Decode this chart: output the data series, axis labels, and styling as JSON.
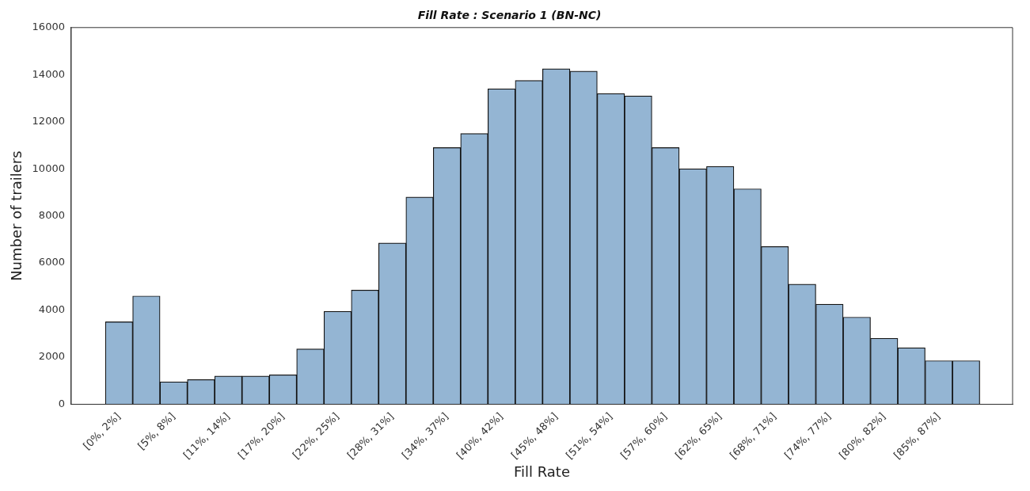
{
  "chart_data": {
    "type": "bar",
    "title": "Fill Rate : Scenario 1 (BN-NC)",
    "xlabel": "Fill Rate",
    "ylabel": "Number of trailers",
    "categories": [
      "[0%, 2%]",
      null,
      "[5%, 8%]",
      null,
      "[11%, 14%]",
      null,
      "[17%, 20%]",
      null,
      "[22%, 25%]",
      null,
      "[28%, 31%]",
      null,
      "[34%, 37%]",
      null,
      "[40%, 42%]",
      null,
      "[45%, 48%]",
      null,
      "[51%, 54%]",
      null,
      "[57%, 60%]",
      null,
      "[62%, 65%]",
      null,
      "[68%, 71%]",
      null,
      "[74%, 77%]",
      null,
      "[80%, 82%]",
      null,
      "[85%, 87%]",
      null
    ],
    "values": [
      3500,
      4600,
      950,
      1050,
      1200,
      1200,
      1250,
      2350,
      3950,
      4850,
      6850,
      8800,
      10900,
      11500,
      13400,
      13750,
      14250,
      14150,
      13200,
      13100,
      10900,
      10000,
      10100,
      9150,
      6700,
      5100,
      4250,
      3700,
      2800,
      2400,
      1850,
      1850
    ],
    "color": "#94b5d3",
    "ylim": [
      0,
      16000
    ],
    "yticks": [
      0,
      2000,
      4000,
      6000,
      8000,
      10000,
      12000,
      14000,
      16000
    ],
    "grid": false,
    "legend": false
  }
}
